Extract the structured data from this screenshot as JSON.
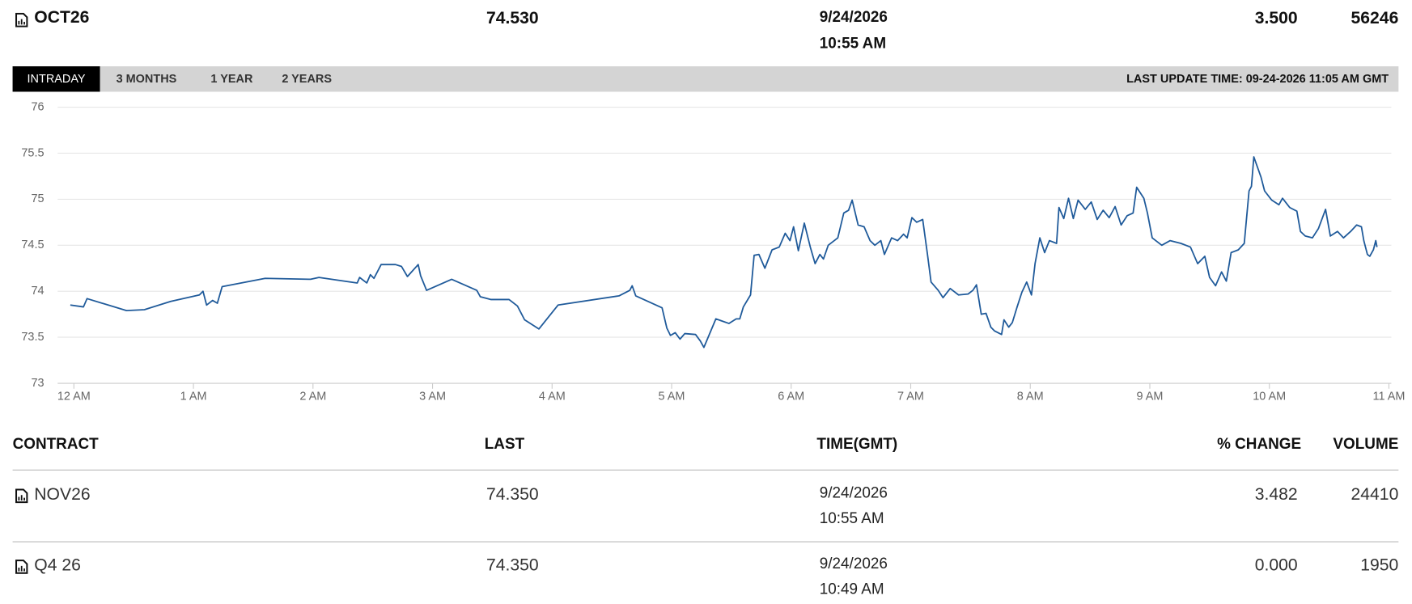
{
  "header": {
    "contract": "OCT26",
    "last": "74.530",
    "date": "9/24/2026",
    "time": "10:55 AM",
    "change": "3.500",
    "volume": "56246"
  },
  "tabs": [
    "INTRADAY",
    "3 MONTHS",
    "1 YEAR",
    "2 YEARS"
  ],
  "last_update": "LAST UPDATE TIME: 09-24-2026 11:05 AM GMT",
  "chart_data": {
    "type": "line",
    "color": "#1f5a9a",
    "grid": true,
    "xlim": [
      -0.136,
      11.02
    ],
    "ylim": [
      73,
      76
    ],
    "xticks": [
      {
        "value": 0,
        "label": "12 AM"
      },
      {
        "value": 1,
        "label": "1 AM"
      },
      {
        "value": 2,
        "label": "2 AM"
      },
      {
        "value": 3,
        "label": "3 AM"
      },
      {
        "value": 4,
        "label": "4 AM"
      },
      {
        "value": 5,
        "label": "5 AM"
      },
      {
        "value": 6,
        "label": "6 AM"
      },
      {
        "value": 7,
        "label": "7 AM"
      },
      {
        "value": 8,
        "label": "8 AM"
      },
      {
        "value": 9,
        "label": "9 AM"
      },
      {
        "value": 10,
        "label": "10 AM"
      },
      {
        "value": 11,
        "label": "11 AM"
      }
    ],
    "yticks": [
      73,
      73.5,
      74,
      74.5,
      75,
      75.5,
      76
    ],
    "x": [
      -0.03,
      0.08,
      0.11,
      0.44,
      0.59,
      0.81,
      1.05,
      1.08,
      1.11,
      1.16,
      1.2,
      1.24,
      1.6,
      1.98,
      2.05,
      2.37,
      2.39,
      2.45,
      2.48,
      2.51,
      2.57,
      2.69,
      2.74,
      2.79,
      2.88,
      2.9,
      2.95,
      3.16,
      3.37,
      3.4,
      3.49,
      3.64,
      3.71,
      3.77,
      3.89,
      4.05,
      4.56,
      4.65,
      4.67,
      4.7,
      4.92,
      4.96,
      4.99,
      5.03,
      5.07,
      5.11,
      5.2,
      5.24,
      5.27,
      5.37,
      5.48,
      5.54,
      5.57,
      5.6,
      5.66,
      5.69,
      5.73,
      5.78,
      5.84,
      5.9,
      5.95,
      5.99,
      6.02,
      6.06,
      6.11,
      6.16,
      6.2,
      6.24,
      6.27,
      6.31,
      6.39,
      6.44,
      6.48,
      6.51,
      6.56,
      6.61,
      6.66,
      6.7,
      6.75,
      6.78,
      6.84,
      6.89,
      6.94,
      6.97,
      7.01,
      7.05,
      7.1,
      7.14,
      7.17,
      7.23,
      7.27,
      7.33,
      7.4,
      7.48,
      7.52,
      7.55,
      7.59,
      7.63,
      7.67,
      7.7,
      7.76,
      7.78,
      7.82,
      7.85,
      7.89,
      7.93,
      7.97,
      8.01,
      8.04,
      8.08,
      8.12,
      8.16,
      8.22,
      8.24,
      8.28,
      8.32,
      8.36,
      8.4,
      8.46,
      8.51,
      8.56,
      8.61,
      8.66,
      8.71,
      8.76,
      8.81,
      8.86,
      8.89,
      8.95,
      8.98,
      9.02,
      9.1,
      9.17,
      9.26,
      9.34,
      9.4,
      9.46,
      9.5,
      9.55,
      9.6,
      9.64,
      9.68,
      9.74,
      9.79,
      9.83,
      9.85,
      9.87,
      9.93,
      9.96,
      10.02,
      10.08,
      10.11,
      10.17,
      10.23,
      10.26,
      10.3,
      10.36,
      10.41,
      10.47,
      10.51,
      10.57,
      10.62,
      10.68,
      10.73,
      10.77,
      10.79,
      10.82,
      10.84,
      10.87,
      10.89,
      10.9
    ],
    "values": [
      73.85,
      73.83,
      73.92,
      73.79,
      73.8,
      73.89,
      73.96,
      74,
      73.85,
      73.9,
      73.87,
      74.05,
      74.14,
      74.13,
      74.15,
      74.09,
      74.15,
      74.09,
      74.18,
      74.14,
      74.29,
      74.29,
      74.27,
      74.16,
      74.29,
      74.17,
      74.01,
      74.13,
      74.01,
      73.94,
      73.91,
      73.91,
      73.84,
      73.69,
      73.59,
      73.85,
      73.95,
      74.01,
      74.06,
      73.95,
      73.82,
      73.6,
      73.52,
      73.55,
      73.48,
      73.54,
      73.53,
      73.46,
      73.39,
      73.7,
      73.65,
      73.7,
      73.7,
      73.83,
      73.96,
      74.39,
      74.4,
      74.25,
      74.45,
      74.48,
      74.63,
      74.55,
      74.7,
      74.44,
      74.74,
      74.48,
      74.3,
      74.4,
      74.35,
      74.5,
      74.58,
      74.85,
      74.88,
      74.99,
      74.72,
      74.7,
      74.55,
      74.5,
      74.55,
      74.4,
      74.58,
      74.55,
      74.62,
      74.58,
      74.8,
      74.75,
      74.78,
      74.4,
      74.1,
      74.01,
      73.93,
      74.03,
      73.96,
      73.97,
      74.01,
      74.07,
      73.75,
      73.76,
      73.61,
      73.57,
      73.53,
      73.69,
      73.61,
      73.66,
      73.83,
      73.99,
      74.1,
      73.96,
      74.3,
      74.58,
      74.42,
      74.55,
      74.52,
      74.91,
      74.79,
      75.01,
      74.79,
      74.99,
      74.89,
      74.97,
      74.78,
      74.88,
      74.8,
      74.92,
      74.72,
      74.82,
      74.85,
      75.13,
      75.01,
      74.85,
      74.58,
      74.5,
      74.55,
      74.52,
      74.48,
      74.3,
      74.38,
      74.15,
      74.06,
      74.21,
      74.11,
      74.42,
      74.45,
      74.52,
      75.09,
      75.14,
      75.46,
      75.24,
      75.09,
      74.99,
      74.94,
      75.01,
      74.91,
      74.87,
      74.65,
      74.6,
      74.58,
      74.68,
      74.89,
      74.6,
      74.65,
      74.58,
      74.65,
      74.72,
      74.7,
      74.55,
      74.4,
      74.38,
      74.45,
      74.55,
      74.48
    ]
  },
  "table": {
    "columns": [
      "CONTRACT",
      "LAST",
      "TIME(GMT)",
      "% CHANGE",
      "VOLUME"
    ],
    "rows": [
      [
        "NOV26",
        "74.350",
        "9/24/2026",
        "10:55 AM",
        "3.482",
        "24410"
      ],
      [
        "Q4 26",
        "74.350",
        "9/24/2026",
        "10:49 AM",
        "0.000",
        "1950"
      ]
    ]
  }
}
